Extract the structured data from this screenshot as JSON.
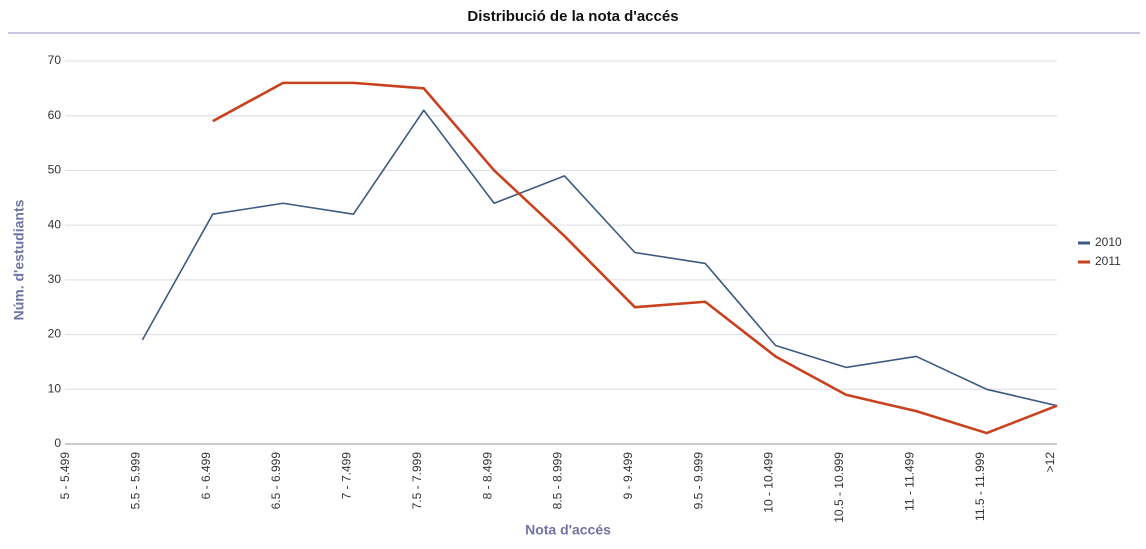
{
  "chart_data": {
    "type": "line",
    "title": "Distribució de la nota d'accés",
    "x_label": "Nota d'accés",
    "y_label": "Núm. d'estudiants",
    "categories": [
      "5 - 5.499",
      "5.5 - 5.999",
      "6 - 6.499",
      "6.5 - 6.999",
      "7 - 7.499",
      "7.5 - 7.999",
      "8 - 8.499",
      "8.5 - 8.999",
      "9 - 9.499",
      "9.5 - 9.999",
      "10 - 10.499",
      "10.5 - 10.999",
      "11 - 11.499",
      "11.5 - 11.999",
      ">12"
    ],
    "series": [
      {
        "name": "2010",
        "color": "#3d5b82",
        "values": [
          null,
          19,
          42,
          44,
          42,
          61,
          44,
          49,
          35,
          33,
          18,
          14,
          16,
          10,
          7
        ]
      },
      {
        "name": "2011",
        "color": "#c9421f",
        "values": [
          null,
          null,
          59,
          66,
          66,
          65,
          50,
          38,
          25,
          26,
          16,
          9,
          6,
          2,
          7
        ]
      }
    ],
    "ylim": [
      0,
      70
    ],
    "yticks": [
      0,
      10,
      20,
      30,
      40,
      50,
      60,
      70
    ],
    "grid": true,
    "legend": "right"
  }
}
